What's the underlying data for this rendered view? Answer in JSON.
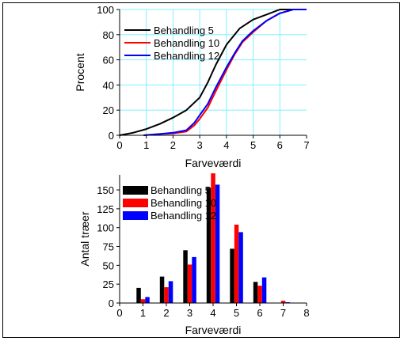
{
  "chart_data": [
    {
      "type": "line",
      "title": "",
      "xlabel": "Farveværdi",
      "ylabel": "Procent",
      "xlim": [
        0,
        7
      ],
      "ylim": [
        0,
        100
      ],
      "x_ticks": [
        0,
        1,
        2,
        3,
        4,
        5,
        6,
        7
      ],
      "y_ticks": [
        0,
        20,
        40,
        60,
        80,
        100
      ],
      "grid": true,
      "grid_color": "#80f0ff",
      "legend_position": "top-left",
      "series": [
        {
          "name": "Behandling 5",
          "color": "#000000",
          "points": [
            [
              0,
              0
            ],
            [
              0.5,
              2
            ],
            [
              1,
              5
            ],
            [
              1.5,
              9
            ],
            [
              2,
              14
            ],
            [
              2.5,
              20
            ],
            [
              3,
              30
            ],
            [
              3.3,
              42
            ],
            [
              3.6,
              56
            ],
            [
              4,
              72
            ],
            [
              4.5,
              85
            ],
            [
              5,
              92
            ],
            [
              5.5,
              96
            ],
            [
              6,
              100
            ],
            [
              6.5,
              100
            ],
            [
              7,
              100
            ]
          ]
        },
        {
          "name": "Behandling 10",
          "color": "#ff0000",
          "points": [
            [
              0.9,
              0
            ],
            [
              1.5,
              1
            ],
            [
              2,
              1.5
            ],
            [
              2.5,
              3
            ],
            [
              2.8,
              8
            ],
            [
              3,
              13
            ],
            [
              3.3,
              22
            ],
            [
              3.6,
              35
            ],
            [
              4,
              52
            ],
            [
              4.3,
              64
            ],
            [
              4.6,
              74
            ],
            [
              5,
              82
            ],
            [
              5.5,
              91
            ],
            [
              6,
              97
            ],
            [
              6.5,
              100
            ],
            [
              7,
              100
            ]
          ]
        },
        {
          "name": "Behandling 12",
          "color": "#0000ff",
          "points": [
            [
              0.9,
              0
            ],
            [
              1.5,
              1
            ],
            [
              2,
              2
            ],
            [
              2.5,
              4
            ],
            [
              2.8,
              10
            ],
            [
              3,
              16
            ],
            [
              3.3,
              25
            ],
            [
              3.6,
              38
            ],
            [
              4,
              54
            ],
            [
              4.3,
              65
            ],
            [
              4.6,
              75
            ],
            [
              5,
              83
            ],
            [
              5.5,
              91
            ],
            [
              6,
              97
            ],
            [
              6.5,
              100
            ],
            [
              7,
              100
            ]
          ]
        }
      ]
    },
    {
      "type": "bar",
      "title": "",
      "xlabel": "Farveværdi",
      "ylabel": "Antal træer",
      "xlim": [
        0,
        8
      ],
      "ylim": [
        0,
        170
      ],
      "x_ticks": [
        0,
        1,
        2,
        3,
        4,
        5,
        6,
        7,
        8
      ],
      "y_ticks": [
        0,
        25,
        50,
        75,
        100,
        125,
        150
      ],
      "grid": false,
      "legend_position": "top-left",
      "categories": [
        1,
        2,
        3,
        4,
        5,
        6,
        7
      ],
      "series": [
        {
          "name": "Behandling 5",
          "color": "#000000",
          "values": [
            20,
            35,
            70,
            153,
            72,
            28,
            0
          ]
        },
        {
          "name": "Behandling 10",
          "color": "#ff0000",
          "values": [
            5,
            21,
            51,
            172,
            104,
            23,
            3
          ]
        },
        {
          "name": "Behandling 12",
          "color": "#0000ff",
          "values": [
            8,
            29,
            61,
            157,
            94,
            34,
            1
          ]
        }
      ]
    }
  ]
}
